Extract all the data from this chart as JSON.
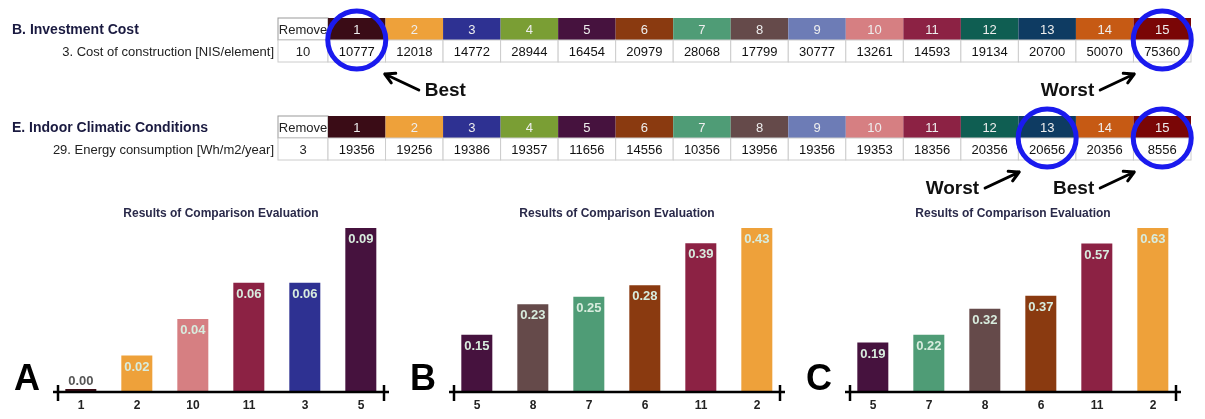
{
  "chart_data": [
    {
      "type": "heatmap",
      "title": "B. Investment Cost",
      "data_labels": true,
      "categories": [
        "1",
        "2",
        "3",
        "4",
        "5",
        "6",
        "7",
        "8",
        "9",
        "10",
        "11",
        "12",
        "13",
        "14",
        "15"
      ],
      "y_categories": [
        "3. Cost of construction [NIS/element]"
      ],
      "colors": [
        "#3a0c16",
        "#eea13a",
        "#2e3192",
        "#7a9e34",
        "#46123e",
        "#8a3a10",
        "#4f9c76",
        "#654a4a",
        "#6d7cb6",
        "#d67f82",
        "#8c2244",
        "#0f5e52",
        "#0e3b62",
        "#c65a14",
        "#7a0606"
      ],
      "cells": [
        [
          10777,
          12018,
          14772,
          28944,
          16454,
          20979,
          28068,
          17799,
          30777,
          13261,
          14593,
          19134,
          20700,
          50070,
          75360
        ]
      ],
      "annotations": [
        "Remove",
        "10",
        "Best",
        "Worst"
      ]
    },
    {
      "type": "heatmap",
      "title": "E. Indoor Climatic Conditions",
      "data_labels": true,
      "categories": [
        "1",
        "2",
        "3",
        "4",
        "5",
        "6",
        "7",
        "8",
        "9",
        "10",
        "11",
        "12",
        "13",
        "14",
        "15"
      ],
      "y_categories": [
        "29. Energy consumption [Wh/m2/year]"
      ],
      "colors": [
        "#3a0c16",
        "#eea13a",
        "#2e3192",
        "#7a9e34",
        "#46123e",
        "#8a3a10",
        "#4f9c76",
        "#654a4a",
        "#6d7cb6",
        "#d67f82",
        "#8c2244",
        "#0f5e52",
        "#0e3b62",
        "#c65a14",
        "#7a0606"
      ],
      "cells": [
        [
          19356,
          19256,
          19386,
          19357,
          11656,
          14556,
          10356,
          13956,
          19356,
          19353,
          18356,
          20356,
          20656,
          20356,
          8556
        ]
      ],
      "annotations": [
        "Remove",
        "3",
        "Best",
        "Worst"
      ]
    },
    {
      "type": "bar",
      "title": "Results of Comparison Evaluation",
      "categories": [
        "1",
        "2",
        "10",
        "11",
        "3",
        "5"
      ],
      "values": [
        0,
        0.02,
        0.04,
        0.06,
        0.06,
        0.09
      ],
      "value_labels": [
        "0.00",
        "0.02",
        "0.04",
        "0.06",
        "0.06",
        "0.09"
      ],
      "colors": [
        "#3a0c16",
        "#eea13a",
        "#d67f82",
        "#8c2244",
        "#2e3192",
        "#46123e"
      ],
      "annotations": [
        "A"
      ]
    },
    {
      "type": "bar",
      "title": "Results of Comparison Evaluation",
      "categories": [
        "5",
        "8",
        "7",
        "6",
        "11",
        "2"
      ],
      "values": [
        0.15,
        0.23,
        0.25,
        0.28,
        0.39,
        0.43
      ],
      "value_labels": [
        "0.15",
        "0.23",
        "0.25",
        "0.28",
        "0.39",
        "0.43"
      ],
      "colors": [
        "#46123e",
        "#654a4a",
        "#4f9c76",
        "#8a3a10",
        "#8c2244",
        "#eea13a"
      ],
      "annotations": [
        "B"
      ]
    },
    {
      "type": "bar",
      "title": "Results of Comparison Evaluation",
      "categories": [
        "5",
        "7",
        "8",
        "6",
        "11",
        "2"
      ],
      "values": [
        0.19,
        0.22,
        0.32,
        0.37,
        0.57,
        0.63
      ],
      "value_labels": [
        "0.19",
        "0.22",
        "0.32",
        "0.37",
        "0.57",
        "0.63"
      ],
      "colors": [
        "#46123e",
        "#4f9c76",
        "#654a4a",
        "#8a3a10",
        "#8c2244",
        "#eea13a"
      ],
      "annotations": [
        "C"
      ]
    }
  ]
}
